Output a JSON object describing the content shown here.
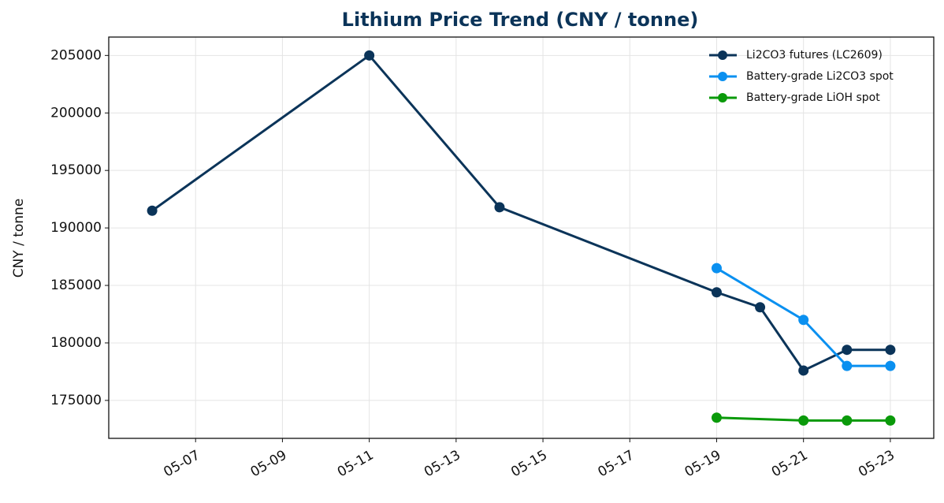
{
  "chart_data": {
    "type": "line",
    "title": "Lithium Price Trend  (CNY / tonne)",
    "y_label": "CNY / tonne",
    "series": [
      {
        "name": "Li2CO3 futures (LC2609)",
        "color": "#0b3459",
        "x": [
          "05-06",
          "05-11",
          "05-14",
          "05-19",
          "05-20",
          "05-21",
          "05-22",
          "05-23"
        ],
        "values": [
          191500,
          205000,
          191800,
          184400,
          183100,
          177600,
          179400,
          179400
        ]
      },
      {
        "name": "Battery-grade Li2CO3 spot",
        "color": "#0a90f0",
        "x": [
          "05-19",
          "05-21",
          "05-22",
          "05-23"
        ],
        "values": [
          186500,
          182000,
          178000,
          178000
        ]
      },
      {
        "name": "Battery-grade LiOH spot",
        "color": "#0a9a0a",
        "x": [
          "05-19",
          "05-21",
          "05-22",
          "05-23"
        ],
        "values": [
          173500,
          173250,
          173250,
          173250
        ]
      }
    ],
    "xlim": [
      "05-05",
      "05-24"
    ],
    "xticks": [
      "05-07",
      "05-09",
      "05-11",
      "05-13",
      "05-15",
      "05-17",
      "05-19",
      "05-21",
      "05-23"
    ],
    "ylim": [
      171700,
      206600
    ],
    "yticks": [
      175000,
      180000,
      185000,
      190000,
      195000,
      200000,
      205000
    ],
    "grid": true,
    "legend": "upper right"
  }
}
